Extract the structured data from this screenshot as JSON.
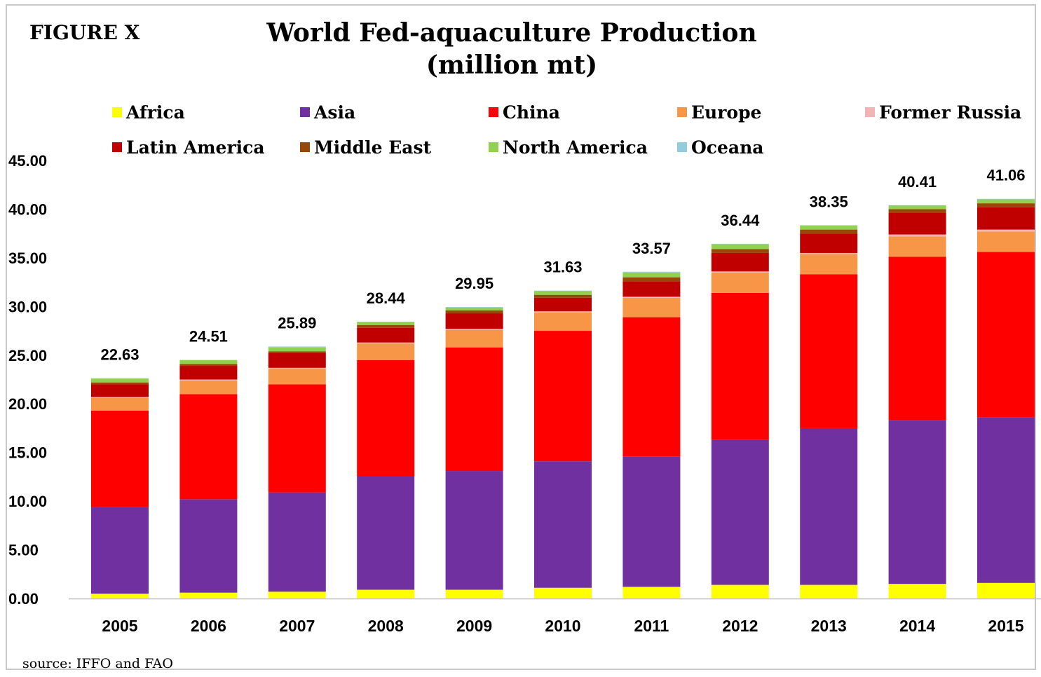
{
  "figure_label": "FIGURE X",
  "chart_data": {
    "type": "bar",
    "stacked": true,
    "title": "World Fed-aquaculture Production",
    "subtitle": "(million mt)",
    "xlabel": "",
    "ylabel": "",
    "ylim": [
      0,
      45
    ],
    "yticks": [
      "0.00",
      "5.00",
      "10.00",
      "15.00",
      "20.00",
      "25.00",
      "30.00",
      "35.00",
      "40.00",
      "45.00"
    ],
    "grid": false,
    "legend_position": "top",
    "categories": [
      "2005",
      "2006",
      "2007",
      "2008",
      "2009",
      "2010",
      "2011",
      "2012",
      "2013",
      "2014",
      "2015"
    ],
    "totals": [
      "22.63",
      "24.51",
      "25.89",
      "28.44",
      "29.95",
      "31.63",
      "33.57",
      "36.44",
      "38.35",
      "40.41",
      "41.06"
    ],
    "series": [
      {
        "name": "Africa",
        "color": "#ffff00",
        "values": [
          0.5,
          0.6,
          0.7,
          0.9,
          0.9,
          1.1,
          1.2,
          1.4,
          1.4,
          1.5,
          1.6
        ]
      },
      {
        "name": "Asia",
        "color": "#7030a0",
        "values": [
          8.9,
          9.6,
          10.2,
          11.7,
          12.2,
          13.0,
          13.4,
          14.9,
          16.1,
          16.8,
          17.0
        ]
      },
      {
        "name": "China",
        "color": "#ff0000",
        "values": [
          9.9,
          10.8,
          11.1,
          11.9,
          12.7,
          13.4,
          14.3,
          15.1,
          15.8,
          16.8,
          17.0
        ]
      },
      {
        "name": "Europe",
        "color": "#f79646",
        "values": [
          1.3,
          1.4,
          1.6,
          1.7,
          1.8,
          1.9,
          2.0,
          2.1,
          2.1,
          2.1,
          2.1
        ]
      },
      {
        "name": "Former Russia",
        "color": "#f2b4b4",
        "values": [
          0.1,
          0.1,
          0.1,
          0.1,
          0.1,
          0.1,
          0.1,
          0.1,
          0.1,
          0.2,
          0.2
        ]
      },
      {
        "name": "Latin America",
        "color": "#c00000",
        "values": [
          1.3,
          1.4,
          1.5,
          1.5,
          1.6,
          1.4,
          1.6,
          1.9,
          2.0,
          2.2,
          2.3
        ]
      },
      {
        "name": "Middle East",
        "color": "#974806",
        "values": [
          0.2,
          0.2,
          0.2,
          0.3,
          0.3,
          0.3,
          0.4,
          0.4,
          0.4,
          0.4,
          0.4
        ]
      },
      {
        "name": "North America",
        "color": "#92d050",
        "values": [
          0.4,
          0.4,
          0.4,
          0.3,
          0.3,
          0.4,
          0.5,
          0.5,
          0.4,
          0.4,
          0.4
        ]
      },
      {
        "name": "Oceana",
        "color": "#93cddd",
        "values": [
          0.03,
          0.01,
          0.09,
          0.04,
          0.05,
          0.03,
          0.07,
          0.04,
          0.05,
          0.01,
          0.06
        ]
      }
    ]
  },
  "source": "source: IFFO and FAO"
}
